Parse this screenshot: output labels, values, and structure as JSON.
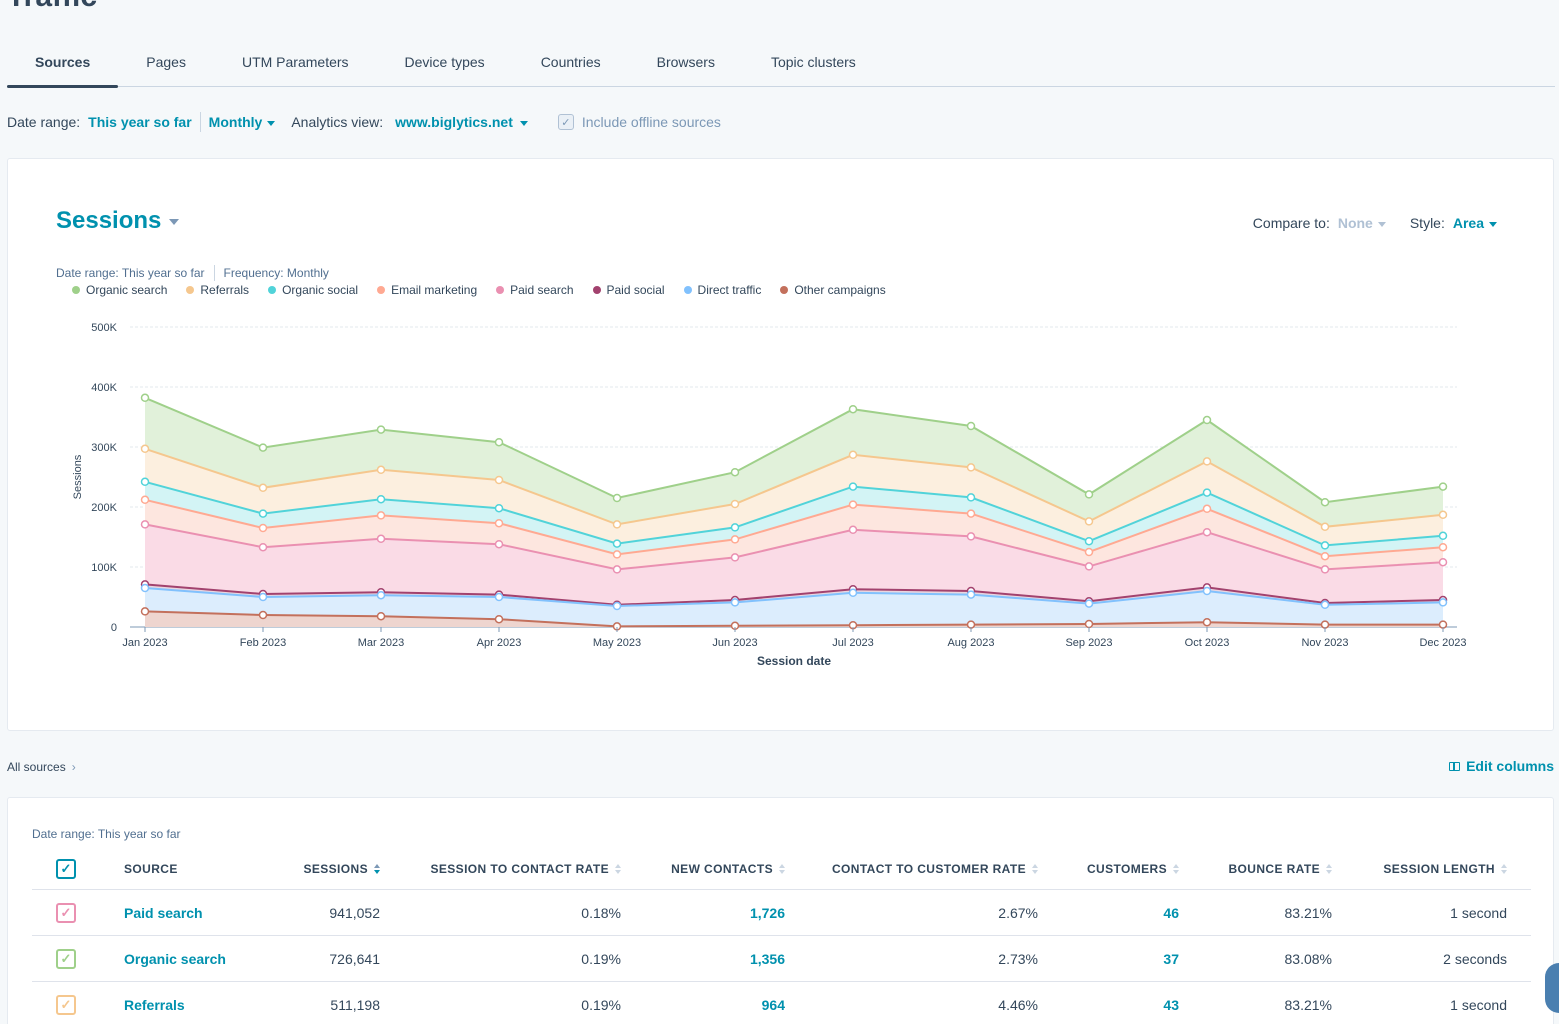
{
  "page": {
    "title": "Traffic"
  },
  "tabs": [
    "Sources",
    "Pages",
    "UTM Parameters",
    "Device types",
    "Countries",
    "Browsers",
    "Topic clusters"
  ],
  "filters": {
    "date_label": "Date range:",
    "date_value": "This year so far",
    "frequency": "Monthly",
    "view_label": "Analytics view:",
    "view_value": "www.biglytics.net",
    "offline_label": "Include offline sources"
  },
  "chart_card": {
    "title": "Sessions",
    "compare_label": "Compare to:",
    "compare_value": "None",
    "style_label": "Style:",
    "style_value": "Area",
    "meta_date": "Date range: This year so far",
    "meta_freq": "Frequency: Monthly"
  },
  "chart_data": {
    "type": "area",
    "stacked": true,
    "xlabel": "Session date",
    "ylabel": "Sessions",
    "ylim": [
      0,
      500000
    ],
    "yticks": [
      0,
      100000,
      200000,
      300000,
      400000,
      500000
    ],
    "ytick_labels": [
      "0",
      "100K",
      "200K",
      "300K",
      "400K",
      "500K"
    ],
    "categories": [
      "Jan 2023",
      "Feb 2023",
      "Mar 2023",
      "Apr 2023",
      "May 2023",
      "Jun 2023",
      "Jul 2023",
      "Aug 2023",
      "Sep 2023",
      "Oct 2023",
      "Nov 2023",
      "Dec 2023"
    ],
    "legend_position": "top-left",
    "series": [
      {
        "name": "Organic search",
        "color": "#9fd08a",
        "fill": "#e1f1da",
        "cumulative": [
          382000,
          299000,
          329000,
          308000,
          215000,
          258000,
          363000,
          335000,
          221000,
          345000,
          208000,
          234000
        ]
      },
      {
        "name": "Referrals",
        "color": "#f5c78e",
        "fill": "#fcefdf",
        "cumulative": [
          297000,
          232000,
          262000,
          245000,
          171000,
          205000,
          287000,
          266000,
          176000,
          276000,
          167000,
          187000
        ]
      },
      {
        "name": "Organic social",
        "color": "#51d3d9",
        "fill": "#d3f4f5",
        "cumulative": [
          242000,
          189000,
          213000,
          198000,
          139000,
          166000,
          234000,
          216000,
          143000,
          224000,
          136000,
          152000
        ]
      },
      {
        "name": "Email marketing",
        "color": "#ffa992",
        "fill": "#fde6df",
        "cumulative": [
          212000,
          165000,
          186000,
          173000,
          121000,
          146000,
          204000,
          189000,
          125000,
          197000,
          118000,
          133000
        ]
      },
      {
        "name": "Paid search",
        "color": "#ea90b1",
        "fill": "#fadbe6",
        "cumulative": [
          171000,
          133000,
          147000,
          138000,
          96000,
          116000,
          162000,
          151000,
          101000,
          158000,
          96000,
          108000
        ]
      },
      {
        "name": "Paid social",
        "color": "#a2426e",
        "fill": "#ead6e0",
        "cumulative": [
          71000,
          55000,
          58000,
          54000,
          37000,
          45000,
          63000,
          60000,
          43000,
          66000,
          40000,
          45000
        ]
      },
      {
        "name": "Direct traffic",
        "color": "#81c1fd",
        "fill": "#dcedfd",
        "cumulative": [
          65000,
          50000,
          53000,
          50000,
          35000,
          41000,
          57000,
          54000,
          39000,
          60000,
          37000,
          41000
        ]
      },
      {
        "name": "Other campaigns",
        "color": "#c3705c",
        "fill": "#eed5cf",
        "cumulative": [
          26000,
          20000,
          18000,
          13000,
          1000,
          2000,
          3000,
          4000,
          5000,
          8000,
          4000,
          4000
        ]
      }
    ]
  },
  "breadcrumb": {
    "label": "All sources",
    "chevron": "›"
  },
  "edit_columns": "Edit columns",
  "table": {
    "date_range": "Date range: This year so far",
    "headers": [
      "SOURCE",
      "SESSIONS",
      "SESSION TO CONTACT RATE",
      "NEW CONTACTS",
      "CONTACT TO CUSTOMER RATE",
      "CUSTOMERS",
      "BOUNCE RATE",
      "SESSION LENGTH"
    ],
    "rows": [
      {
        "source": "Paid search",
        "color": "#ea90b1",
        "sessions": "941,052",
        "stcr": "0.18%",
        "new_contacts": "1,726",
        "ctcr": "2.67%",
        "customers": "46",
        "bounce": "83.21%",
        "length": "1 second"
      },
      {
        "source": "Organic search",
        "color": "#9fd08a",
        "sessions": "726,641",
        "stcr": "0.19%",
        "new_contacts": "1,356",
        "ctcr": "2.73%",
        "customers": "37",
        "bounce": "83.08%",
        "length": "2 seconds"
      },
      {
        "source": "Referrals",
        "color": "#f5c78e",
        "sessions": "511,198",
        "stcr": "0.19%",
        "new_contacts": "964",
        "ctcr": "4.46%",
        "customers": "43",
        "bounce": "83.21%",
        "length": "1 second"
      }
    ]
  },
  "colors": {
    "accent": "#0091ae",
    "text": "#33475b"
  }
}
